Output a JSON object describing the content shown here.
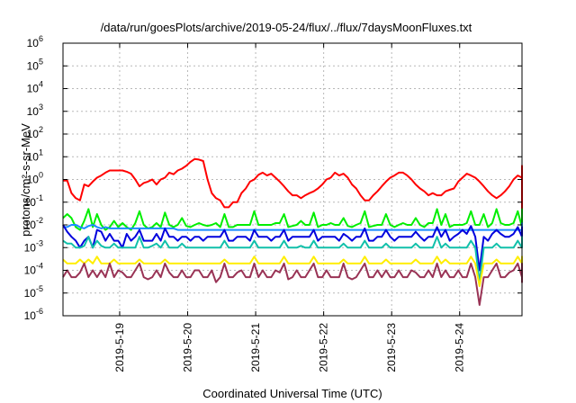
{
  "chart_data": {
    "type": "line",
    "title": "/data/run/goesPlots/archive/2019-05-24/flux/../flux/7daysMoonFluxes.txt",
    "xlabel": "Coordinated Universal Time (UTC)",
    "ylabel": "protons/cm²-s-sr-MeV",
    "y_scale": "log",
    "ylim": [
      1e-06,
      1000000.0
    ],
    "y_ticks": [
      {
        "base": "10",
        "exp": "-6"
      },
      {
        "base": "10",
        "exp": "-5"
      },
      {
        "base": "10",
        "exp": "-4"
      },
      {
        "base": "10",
        "exp": "-3"
      },
      {
        "base": "10",
        "exp": "-2"
      },
      {
        "base": "10",
        "exp": "-1"
      },
      {
        "base": "10",
        "exp": "0"
      },
      {
        "base": "10",
        "exp": "1"
      },
      {
        "base": "10",
        "exp": "2"
      },
      {
        "base": "10",
        "exp": "3"
      },
      {
        "base": "10",
        "exp": "4"
      },
      {
        "base": "10",
        "exp": "5"
      },
      {
        "base": "10",
        "exp": "6"
      }
    ],
    "xlim": [
      "2019-05-18T04:00",
      "2019-05-24T22:00"
    ],
    "x_ticks": [
      "2019-5-19",
      "2019-5-20",
      "2019-5-21",
      "2019-5-22",
      "2019-5-23",
      "2019-5-24"
    ],
    "x_tick_dates": [
      "2019-05-19",
      "2019-05-20",
      "2019-05-21",
      "2019-05-22",
      "2019-05-23",
      "2019-05-24"
    ],
    "grid": true,
    "x_start": "2019-05-18T04:00",
    "x_step_hours": 1.5,
    "series": [
      {
        "color": "#ff0000",
        "values": [
          0.9,
          0.9,
          0.25,
          0.15,
          0.12,
          0.6,
          0.5,
          0.8,
          1.2,
          1.5,
          2.0,
          2.5,
          2.5,
          2.5,
          2.5,
          2.2,
          1.8,
          1.0,
          0.5,
          0.7,
          0.8,
          1.0,
          0.6,
          1.0,
          1.2,
          2.0,
          1.7,
          2.5,
          3.0,
          4.0,
          6.0,
          8.0,
          7.5,
          6.5,
          1.0,
          0.25,
          0.15,
          0.12,
          0.06,
          0.06,
          0.1,
          0.1,
          0.25,
          0.4,
          0.8,
          1.0,
          1.6,
          2.0,
          1.5,
          1.8,
          1.2,
          0.8,
          0.5,
          0.3,
          0.2,
          0.2,
          0.15,
          0.2,
          0.25,
          0.3,
          0.4,
          0.6,
          1.0,
          1.2,
          2.0,
          1.5,
          1.8,
          1.2,
          0.6,
          0.4,
          0.2,
          0.12,
          0.12,
          0.2,
          0.3,
          0.5,
          0.8,
          1.2,
          1.5,
          2.0,
          2.0,
          1.5,
          1.0,
          0.6,
          0.4,
          0.3,
          0.2,
          0.25,
          0.2,
          0.2,
          0.3,
          0.35,
          0.4,
          0.8,
          1.2,
          1.8,
          1.5,
          1.2,
          0.8,
          0.5,
          0.3,
          0.2,
          0.15,
          0.2,
          0.3,
          0.5,
          1.0,
          1.5,
          1.2,
          1.8,
          1.8,
          1.2,
          0.8,
          0.6,
          0.4,
          0.2,
          0.1,
          0.04,
          0.03,
          0.04,
          0.06,
          0.2,
          0.4,
          0.5,
          0.4,
          0.6,
          0.5,
          1.0,
          1.5,
          2.5,
          4.0,
          3.0,
          4.0,
          2.0
        ]
      },
      {
        "color": "#00ee00",
        "values": [
          0.02,
          0.03,
          0.02,
          0.008,
          0.006,
          0.015,
          0.05,
          0.008,
          0.03,
          0.01,
          0.006,
          0.008,
          0.015,
          0.008,
          0.012,
          0.008,
          0.006,
          0.012,
          0.04,
          0.01,
          0.007,
          0.008,
          0.012,
          0.008,
          0.035,
          0.01,
          0.008,
          0.01,
          0.02,
          0.009,
          0.008,
          0.01,
          0.012,
          0.01,
          0.009,
          0.01,
          0.012,
          0.008,
          0.03,
          0.008,
          0.008,
          0.01,
          0.01,
          0.01,
          0.01,
          0.04,
          0.01,
          0.01,
          0.01,
          0.01,
          0.012,
          0.012,
          0.03,
          0.008,
          0.009,
          0.01,
          0.015,
          0.01,
          0.01,
          0.035,
          0.008,
          0.01,
          0.01,
          0.012,
          0.01,
          0.01,
          0.02,
          0.009,
          0.008,
          0.01,
          0.012,
          0.04,
          0.008,
          0.009,
          0.01,
          0.01,
          0.03,
          0.01,
          0.008,
          0.01,
          0.012,
          0.01,
          0.01,
          0.02,
          0.01,
          0.008,
          0.012,
          0.012,
          0.05,
          0.01,
          0.03,
          0.008,
          0.01,
          0.01,
          0.01,
          0.012,
          0.04,
          0.01,
          0.01,
          0.03,
          0.008,
          0.012,
          0.05,
          0.012,
          0.01,
          0.01,
          0.012,
          0.04,
          0.008,
          0.01,
          0.015,
          0.01,
          0.02,
          0.008,
          0.01,
          0.012,
          0.012,
          0.015,
          0.05,
          0.01,
          0.008,
          0.01,
          0.012,
          0.01,
          0.03,
          0.012,
          0.05,
          0.02,
          0.02,
          0.015,
          0.008,
          0.015,
          0.012,
          0.02
        ]
      },
      {
        "color": "#1a8cff",
        "values": [
          0.008,
          0.008,
          0.01,
          0.01,
          0.008,
          0.007,
          0.009,
          0.01,
          0.008,
          0.007,
          0.008,
          0.007,
          0.007,
          0.007,
          0.007,
          0.007,
          0.007,
          0.007,
          0.007,
          0.007,
          0.007,
          0.007,
          0.007,
          0.007,
          0.007,
          0.007,
          0.007,
          0.006,
          0.006,
          0.006,
          0.006,
          0.006,
          0.006,
          0.006,
          0.006,
          0.006,
          0.006,
          0.006,
          0.006,
          0.006,
          0.006,
          0.006,
          0.006,
          0.006,
          0.006,
          0.006,
          0.006,
          0.006,
          0.006,
          0.006,
          0.006,
          0.006,
          0.006,
          0.006,
          0.006,
          0.006,
          0.006,
          0.006,
          0.006,
          0.006,
          0.006,
          0.006,
          0.006,
          0.006,
          0.006,
          0.006,
          0.006,
          0.006,
          0.006,
          0.006,
          0.006,
          0.006,
          0.006,
          0.006,
          0.006,
          0.006,
          0.006,
          0.006,
          0.006,
          0.006,
          0.006,
          0.006,
          0.006,
          0.006,
          0.006,
          0.006,
          0.006,
          0.006,
          0.006,
          0.006,
          0.006,
          0.006,
          0.006,
          0.006,
          0.006,
          0.006,
          0.006,
          0.006,
          0.006,
          0.006,
          0.006,
          0.006,
          0.006,
          0.006,
          0.006,
          0.006,
          0.006,
          0.006,
          0.006,
          0.006,
          0.006,
          0.006,
          0.006,
          0.006,
          0.006,
          0.006,
          0.006,
          0.006,
          0.006,
          0.006,
          0.006,
          0.006,
          0.007,
          0.008,
          0.01,
          0.01,
          0.012,
          0.012,
          0.012,
          0.008,
          0.008,
          0.009,
          0.008,
          0.01
        ]
      },
      {
        "color": "#0000dd",
        "values": [
          0.01,
          0.005,
          0.003,
          0.002,
          0.001,
          0.002,
          0.003,
          0.001,
          0.006,
          0.005,
          0.002,
          0.004,
          0.002,
          0.002,
          0.001,
          0.004,
          0.002,
          0.003,
          0.006,
          0.002,
          0.002,
          0.002,
          0.004,
          0.002,
          0.007,
          0.003,
          0.003,
          0.002,
          0.003,
          0.003,
          0.002,
          0.003,
          0.003,
          0.002,
          0.003,
          0.003,
          0.003,
          0.003,
          0.006,
          0.002,
          0.002,
          0.003,
          0.003,
          0.003,
          0.002,
          0.006,
          0.003,
          0.003,
          0.003,
          0.002,
          0.003,
          0.003,
          0.006,
          0.002,
          0.003,
          0.003,
          0.003,
          0.003,
          0.003,
          0.006,
          0.002,
          0.003,
          0.003,
          0.003,
          0.003,
          0.002,
          0.004,
          0.003,
          0.002,
          0.003,
          0.003,
          0.007,
          0.002,
          0.002,
          0.003,
          0.003,
          0.006,
          0.003,
          0.002,
          0.003,
          0.003,
          0.003,
          0.003,
          0.005,
          0.003,
          0.002,
          0.003,
          0.003,
          0.008,
          0.003,
          0.006,
          0.002,
          0.003,
          0.004,
          0.006,
          0.004,
          0.009,
          0.003,
          0.0001,
          0.003,
          0.002,
          0.004,
          0.006,
          0.004,
          0.003,
          0.003,
          0.004,
          0.008,
          0.003,
          0.003,
          0.004,
          0.003,
          0.005,
          0.003,
          0.003,
          0.004,
          0.003,
          0.003,
          0.008,
          0.005,
          0.003,
          0.003,
          0.002,
          0.003,
          0.004,
          0.003,
          0.008,
          0.004,
          0.003,
          0.002,
          0.002,
          0.002,
          0.002,
          0.003
        ]
      },
      {
        "color": "#11c0aa",
        "values": [
          0.002,
          0.0015,
          0.0015,
          0.001,
          0.001,
          0.0012,
          0.003,
          0.001,
          0.002,
          0.0012,
          0.001,
          0.001,
          0.0015,
          0.001,
          0.001,
          0.001,
          0.001,
          0.001,
          0.003,
          0.001,
          0.001,
          0.0012,
          0.0015,
          0.001,
          0.002,
          0.001,
          0.001,
          0.001,
          0.0015,
          0.001,
          0.001,
          0.001,
          0.001,
          0.001,
          0.001,
          0.001,
          0.001,
          0.001,
          0.002,
          0.001,
          0.001,
          0.001,
          0.001,
          0.001,
          0.001,
          0.002,
          0.001,
          0.001,
          0.001,
          0.001,
          0.001,
          0.001,
          0.002,
          0.001,
          0.001,
          0.001,
          0.0012,
          0.001,
          0.001,
          0.002,
          0.001,
          0.001,
          0.001,
          0.001,
          0.001,
          0.001,
          0.0015,
          0.001,
          0.001,
          0.001,
          0.001,
          0.002,
          0.001,
          0.001,
          0.001,
          0.001,
          0.0015,
          0.001,
          0.001,
          0.001,
          0.001,
          0.001,
          0.001,
          0.0015,
          0.001,
          0.001,
          0.001,
          0.001,
          0.003,
          0.001,
          0.0015,
          0.001,
          0.001,
          0.001,
          0.001,
          0.001,
          0.002,
          0.001,
          3e-05,
          0.001,
          0.001,
          0.001,
          0.0015,
          0.001,
          0.001,
          0.001,
          0.001,
          0.002,
          0.001,
          0.001,
          0.001,
          0.001,
          0.0015,
          0.001,
          0.001,
          0.001,
          0.001,
          0.001,
          0.002,
          0.001,
          0.001,
          0.001,
          0.001,
          0.001,
          0.0015,
          0.001,
          0.003,
          0.002,
          0.002,
          0.0015,
          0.001,
          0.0015,
          0.002,
          0.001
        ]
      },
      {
        "color": "#ffee00",
        "values": [
          0.0003,
          0.0002,
          0.0002,
          0.0002,
          0.0003,
          0.0002,
          0.0003,
          0.0002,
          0.0004,
          0.0002,
          0.0002,
          0.0002,
          0.0003,
          0.0002,
          0.0002,
          0.0002,
          0.0002,
          0.0002,
          0.0003,
          0.0002,
          0.0002,
          0.0002,
          0.0002,
          0.0002,
          0.0003,
          0.0002,
          0.0002,
          0.0002,
          0.0002,
          0.0002,
          0.0002,
          0.0002,
          0.0002,
          0.0002,
          0.0002,
          0.0002,
          0.0002,
          0.0002,
          0.0003,
          0.0002,
          0.0002,
          0.0002,
          0.0002,
          0.0002,
          0.0002,
          0.0004,
          0.0002,
          0.0002,
          0.0002,
          0.0002,
          0.0002,
          0.0002,
          0.0004,
          0.0002,
          0.0002,
          0.0002,
          0.0002,
          0.0002,
          0.0002,
          0.0004,
          0.0002,
          0.0002,
          0.0002,
          0.0002,
          0.0002,
          0.0002,
          0.0003,
          0.0002,
          0.0002,
          0.0002,
          0.0002,
          0.0004,
          0.0002,
          0.0002,
          0.0002,
          0.0002,
          0.0003,
          0.0002,
          0.0002,
          0.0002,
          0.0002,
          0.0002,
          0.0002,
          0.0003,
          0.0002,
          0.0002,
          0.0002,
          0.0002,
          0.0004,
          0.0002,
          0.0003,
          0.0002,
          0.0002,
          0.0002,
          0.0002,
          0.0002,
          0.0004,
          0.0002,
          2e-05,
          0.0002,
          0.0002,
          0.0002,
          0.0003,
          0.0002,
          0.0002,
          0.0002,
          0.0002,
          0.0004,
          0.0002,
          0.0002,
          0.0002,
          0.0002,
          0.0003,
          0.0002,
          0.0002,
          0.0002,
          0.0002,
          0.0002,
          0.0004,
          0.0002,
          0.0002,
          0.0002,
          0.0002,
          0.0002,
          0.0003,
          0.0002,
          0.0004,
          0.0003,
          0.0002,
          0.0002,
          0.0002,
          0.0002,
          0.0003,
          0.0002
        ]
      },
      {
        "color": "#993355",
        "values": [
          5e-05,
          0.0001,
          5e-05,
          5e-05,
          8e-05,
          0.0002,
          5e-05,
          0.0001,
          5e-05,
          0.0001,
          5e-05,
          0.0002,
          5e-05,
          0.0001,
          8e-05,
          5e-05,
          5e-05,
          0.0001,
          0.0002,
          5e-05,
          4e-05,
          5e-05,
          0.0001,
          5e-05,
          0.0002,
          8e-05,
          5e-05,
          5e-05,
          0.0001,
          5e-05,
          5e-05,
          0.0001,
          0.0001,
          5e-05,
          5e-05,
          0.0001,
          3e-05,
          5e-05,
          0.0002,
          5e-05,
          5e-05,
          8e-05,
          0.0001,
          5e-05,
          5e-05,
          0.0002,
          5e-05,
          0.0001,
          5e-05,
          5e-05,
          0.0001,
          8e-05,
          0.0002,
          4e-05,
          5e-05,
          0.0001,
          5e-05,
          5e-05,
          0.0001,
          0.0002,
          5e-05,
          5e-05,
          0.0001,
          5e-05,
          5e-05,
          5e-05,
          0.0002,
          5e-05,
          4e-05,
          5e-05,
          0.0001,
          0.0002,
          5e-05,
          5e-05,
          0.0001,
          5e-05,
          0.0001,
          5e-05,
          5e-05,
          0.0001,
          5e-05,
          5e-05,
          0.0001,
          8e-05,
          5e-05,
          5e-05,
          0.0001,
          5e-05,
          0.0002,
          5e-05,
          0.0001,
          5e-05,
          5e-05,
          0.0001,
          5e-05,
          5e-05,
          0.0002,
          5e-05,
          3e-06,
          5e-05,
          5e-05,
          0.0001,
          0.0002,
          5e-05,
          5e-05,
          8e-05,
          0.0001,
          0.0002,
          5e-05,
          5e-05,
          0.0001,
          5e-05,
          0.0001,
          5e-05,
          5e-05,
          0.0001,
          5e-05,
          8e-05,
          0.0002,
          5e-05,
          4e-05,
          5e-05,
          0.0001,
          5e-05,
          0.0001,
          5e-05,
          0.0002,
          8e-05,
          5e-05,
          5e-05,
          3e-05,
          5e-05,
          0.0001,
          5e-05
        ]
      }
    ]
  }
}
